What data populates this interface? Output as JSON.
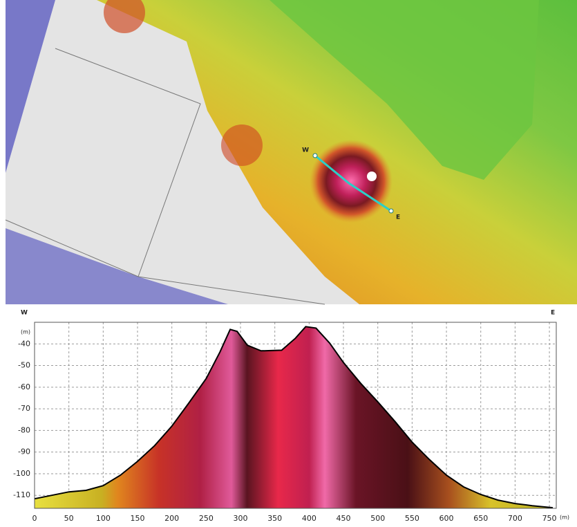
{
  "map_labels": {
    "west": "W",
    "east": "E"
  },
  "chart_data": {
    "type": "area",
    "profile_labels": {
      "west": "W",
      "east": "E"
    },
    "y_unit": "(m)",
    "x_unit": "(m)",
    "x": [
      0,
      50,
      75,
      100,
      125,
      150,
      175,
      200,
      225,
      250,
      270,
      285,
      295,
      310,
      330,
      360,
      380,
      395,
      410,
      430,
      450,
      475,
      500,
      525,
      550,
      575,
      600,
      625,
      650,
      675,
      700,
      725,
      755
    ],
    "values": [
      -111.6,
      -108.4,
      -107.7,
      -105.5,
      -100.7,
      -94.3,
      -87,
      -78,
      -67.2,
      -56,
      -43.8,
      -33.3,
      -34.2,
      -40.6,
      -43.2,
      -42.9,
      -37.4,
      -32,
      -32.7,
      -39.7,
      -48.6,
      -58.2,
      -66.8,
      -75.8,
      -85.4,
      -93.4,
      -100.7,
      -106.1,
      -109.6,
      -112.2,
      -113.8,
      -114.8,
      -115.7
    ],
    "color": "#000000",
    "xlim": [
      0,
      760
    ],
    "ylim": [
      -116,
      -30
    ],
    "xticks": [
      0,
      50,
      100,
      150,
      200,
      250,
      300,
      350,
      400,
      450,
      500,
      550,
      600,
      650,
      700,
      750
    ],
    "yticks": [
      -40,
      -50,
      -60,
      -70,
      -80,
      -90,
      -100,
      -110
    ],
    "grid": true
  }
}
